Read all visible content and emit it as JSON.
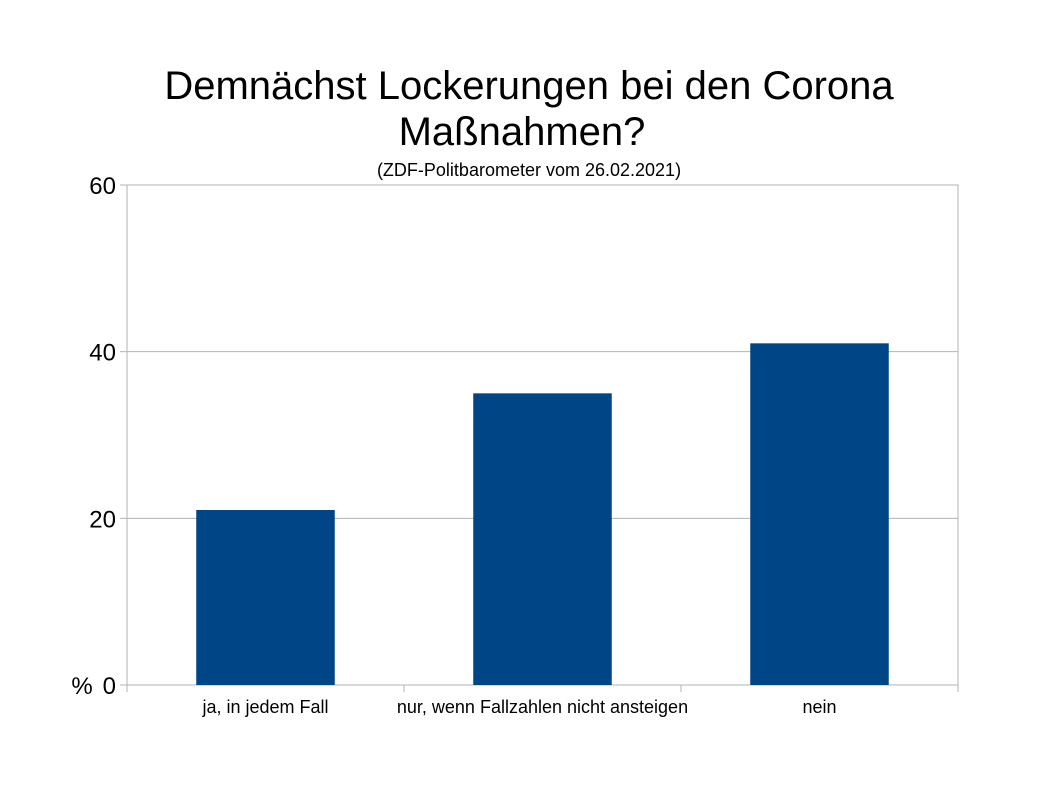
{
  "chart_data": {
    "type": "bar",
    "title_lines": [
      "Demnächst Lockerungen bei den Corona",
      "Maßnahmen?"
    ],
    "subtitle": "(ZDF-Politbarometer vom 26.02.2021)",
    "ylabel": "%",
    "xlabel": "",
    "categories": [
      "ja, in jedem Fall",
      "nur, wenn Fallzahlen nicht ansteigen",
      "nein"
    ],
    "values": [
      21,
      35,
      41
    ],
    "ylim": [
      0,
      60
    ],
    "yticks": [
      "0",
      "20",
      "40",
      "60"
    ],
    "grid": true,
    "legend": "none",
    "bar_color": "#004586"
  }
}
